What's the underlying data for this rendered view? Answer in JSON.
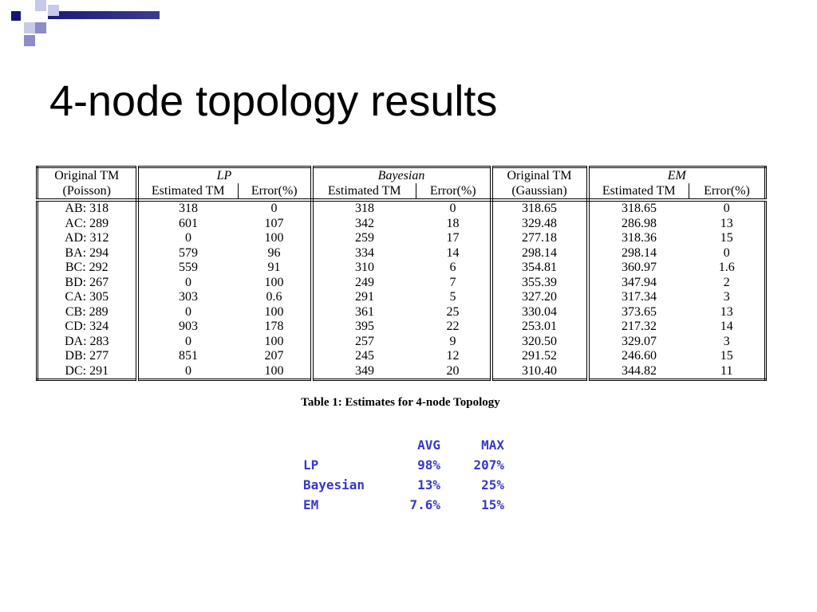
{
  "title": "4-node topology results",
  "table": {
    "header_top": [
      "Original TM",
      "LP",
      "Bayesian",
      "Original TM",
      "EM"
    ],
    "header_sub": [
      "(Poisson)",
      "Estimated TM",
      "Error(%)",
      "Estimated TM",
      "Error(%)",
      "(Gaussian)",
      "Estimated TM",
      "Error(%)"
    ],
    "rows": [
      [
        "AB: 318",
        "318",
        "0",
        "318",
        "0",
        "318.65",
        "318.65",
        "0"
      ],
      [
        "AC: 289",
        "601",
        "107",
        "342",
        "18",
        "329.48",
        "286.98",
        "13"
      ],
      [
        "AD: 312",
        "0",
        "100",
        "259",
        "17",
        "277.18",
        "318.36",
        "15"
      ],
      [
        "BA: 294",
        "579",
        "96",
        "334",
        "14",
        "298.14",
        "298.14",
        "0"
      ],
      [
        "BC: 292",
        "559",
        "91",
        "310",
        "6",
        "354.81",
        "360.97",
        "1.6"
      ],
      [
        "BD: 267",
        "0",
        "100",
        "249",
        "7",
        "355.39",
        "347.94",
        "2"
      ],
      [
        "CA: 305",
        "303",
        "0.6",
        "291",
        "5",
        "327.20",
        "317.34",
        "3"
      ],
      [
        "CB: 289",
        "0",
        "100",
        "361",
        "25",
        "330.04",
        "373.65",
        "13"
      ],
      [
        "CD: 324",
        "903",
        "178",
        "395",
        "22",
        "253.01",
        "217.32",
        "14"
      ],
      [
        "DA: 283",
        "0",
        "100",
        "257",
        "9",
        "320.50",
        "329.07",
        "3"
      ],
      [
        "DB: 277",
        "851",
        "207",
        "245",
        "12",
        "291.52",
        "246.60",
        "15"
      ],
      [
        "DC: 291",
        "0",
        "100",
        "349",
        "20",
        "310.40",
        "344.82",
        "11"
      ]
    ],
    "caption": "Table 1: Estimates for 4-node Topology"
  },
  "summary": {
    "header": [
      "AVG",
      "MAX"
    ],
    "rows": [
      [
        "LP",
        "98%",
        "207%"
      ],
      [
        "Bayesian",
        "13%",
        "25%"
      ],
      [
        "EM",
        "7.6%",
        "15%"
      ]
    ]
  }
}
